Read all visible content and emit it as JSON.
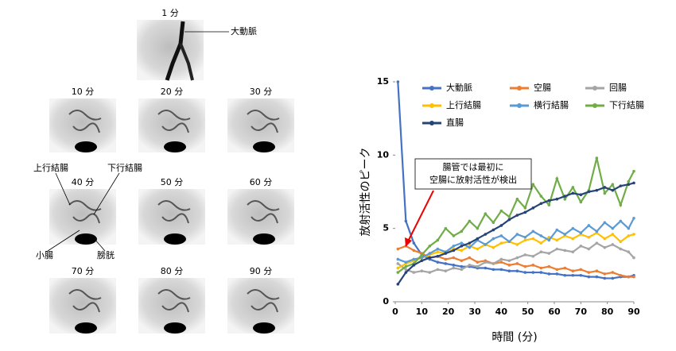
{
  "image_panel": {
    "labels": [
      "1 分",
      "10 分",
      "20 分",
      "30 分",
      "40 分",
      "50 分",
      "60 分",
      "70 分",
      "80 分",
      "90 分"
    ],
    "annotations": [
      "大動脈",
      "上行結腸",
      "下行結腸",
      "小腸",
      "膀胱"
    ]
  },
  "chart_data": {
    "type": "line",
    "x_label": "時間 (分)",
    "y_label": "放射活性のピーク",
    "annotation": [
      "腸管では最初に",
      "空腸に放射活性が検出"
    ],
    "x": [
      1,
      4,
      7,
      10,
      13,
      16,
      19,
      22,
      25,
      28,
      31,
      34,
      37,
      40,
      43,
      46,
      49,
      52,
      55,
      58,
      61,
      64,
      67,
      70,
      73,
      76,
      79,
      82,
      85,
      88,
      90
    ],
    "xlim": [
      0,
      90
    ],
    "xticks": [
      0,
      10,
      20,
      30,
      40,
      50,
      60,
      70,
      80,
      90
    ],
    "ylim": [
      0,
      15
    ],
    "yticks": [
      0,
      5,
      10,
      15
    ],
    "grid": false,
    "series": [
      {
        "name": "大動脈",
        "color": "#4472c4",
        "values": [
          15,
          5.5,
          4.0,
          3.2,
          2.9,
          2.7,
          2.6,
          2.5,
          2.4,
          2.4,
          2.3,
          2.3,
          2.2,
          2.2,
          2.1,
          2.1,
          2.0,
          2.0,
          2.0,
          1.9,
          1.9,
          1.8,
          1.8,
          1.8,
          1.7,
          1.7,
          1.6,
          1.6,
          1.7,
          1.7,
          1.8
        ]
      },
      {
        "name": "空腸",
        "color": "#ed7d31",
        "values": [
          3.6,
          3.8,
          3.5,
          3.3,
          3.0,
          3.1,
          2.9,
          3.0,
          2.8,
          3.0,
          2.7,
          2.8,
          2.6,
          2.7,
          2.5,
          2.6,
          2.4,
          2.5,
          2.3,
          2.4,
          2.2,
          2.3,
          2.1,
          2.2,
          2.0,
          2.1,
          1.9,
          2.0,
          1.8,
          1.7,
          1.7
        ]
      },
      {
        "name": "回腸",
        "color": "#a5a5a5",
        "values": [
          2.6,
          2.2,
          2.0,
          2.1,
          2.0,
          2.2,
          2.1,
          2.3,
          2.2,
          2.5,
          2.4,
          2.7,
          2.6,
          2.9,
          2.8,
          3.0,
          3.2,
          3.1,
          3.4,
          3.3,
          3.6,
          3.5,
          3.4,
          3.8,
          3.6,
          4.0,
          3.7,
          3.9,
          3.6,
          3.4,
          3.0
        ]
      },
      {
        "name": "上行結腸",
        "color": "#ffc000",
        "values": [
          2.3,
          2.6,
          2.8,
          3.0,
          3.2,
          3.4,
          3.3,
          3.6,
          3.5,
          3.8,
          3.6,
          3.9,
          3.7,
          4.0,
          4.1,
          3.9,
          4.2,
          4.3,
          4.0,
          4.4,
          4.2,
          4.5,
          4.3,
          4.6,
          4.4,
          4.7,
          4.3,
          4.6,
          4.1,
          4.5,
          4.6
        ]
      },
      {
        "name": "横行結腸",
        "color": "#5b9bd5",
        "values": [
          2.9,
          2.7,
          2.9,
          3.0,
          3.3,
          3.6,
          3.4,
          3.8,
          4.0,
          3.7,
          4.2,
          3.9,
          4.3,
          4.5,
          4.1,
          4.6,
          4.4,
          4.8,
          4.5,
          4.2,
          4.9,
          4.6,
          5.0,
          4.7,
          5.2,
          4.8,
          5.4,
          5.0,
          5.5,
          5.0,
          5.7
        ]
      },
      {
        "name": "下行結腸",
        "color": "#70ad47",
        "values": [
          2.0,
          2.4,
          2.6,
          3.2,
          3.8,
          4.2,
          5.0,
          4.5,
          4.8,
          5.5,
          5.0,
          6.0,
          5.4,
          6.2,
          5.8,
          7.0,
          6.4,
          8.0,
          7.2,
          6.6,
          8.4,
          7.0,
          7.8,
          6.8,
          7.6,
          9.8,
          7.4,
          8.0,
          6.6,
          8.2,
          8.9
        ]
      },
      {
        "name": "直腸",
        "color": "#264478",
        "values": [
          1.2,
          2.0,
          2.5,
          2.8,
          3.0,
          3.1,
          3.3,
          3.5,
          3.8,
          4.0,
          4.3,
          4.6,
          4.9,
          5.2,
          5.6,
          5.9,
          6.1,
          6.4,
          6.7,
          6.9,
          7.0,
          7.2,
          7.4,
          7.3,
          7.5,
          7.6,
          7.8,
          7.6,
          7.9,
          8.0,
          8.1
        ]
      }
    ]
  }
}
